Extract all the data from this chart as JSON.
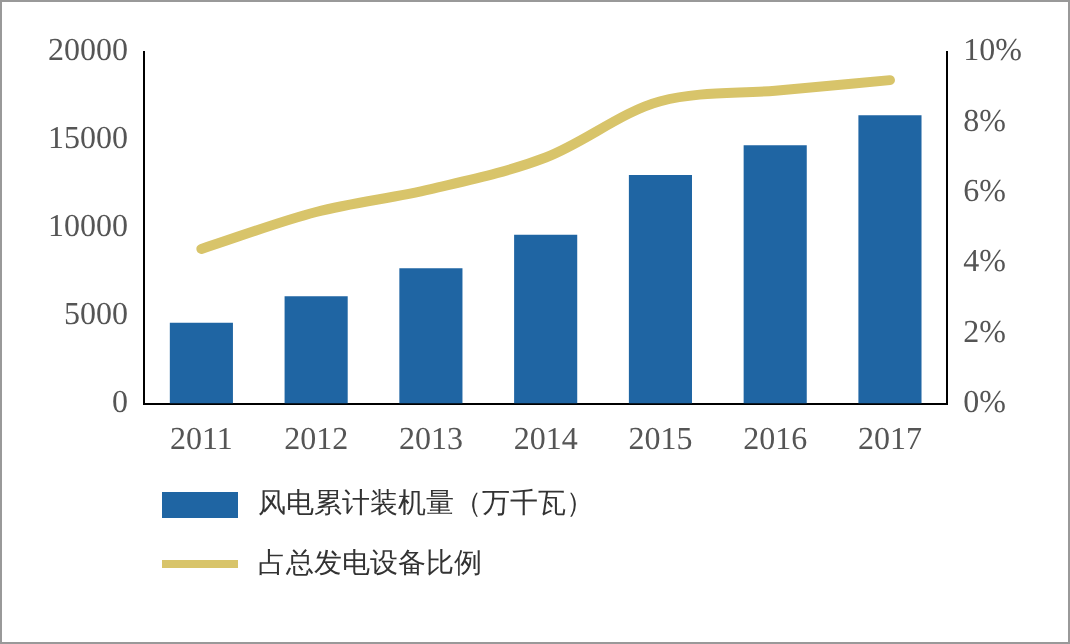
{
  "chart_data": {
    "type": "bar",
    "categories": [
      "2011",
      "2012",
      "2013",
      "2014",
      "2015",
      "2016",
      "2017"
    ],
    "series": [
      {
        "name": "风电累计装机量（万千瓦）",
        "color": "#1f65a3",
        "values": [
          4600,
          6100,
          7700,
          9600,
          13000,
          14700,
          16400
        ]
      },
      {
        "name": "占总发电设备比例",
        "type": "line",
        "axis": "y2",
        "color": "#d8c46a",
        "values": [
          4.4,
          5.45,
          6.1,
          7.0,
          8.6,
          8.9,
          9.2
        ]
      }
    ],
    "ylim": [
      0,
      20000
    ],
    "yticks": [
      0,
      5000,
      10000,
      15000,
      20000
    ],
    "y2lim": [
      0,
      10
    ],
    "y2ticks": [
      {
        "value": 0,
        "label": "0%"
      },
      {
        "value": 2,
        "label": "2%"
      },
      {
        "value": 4,
        "label": "4%"
      },
      {
        "value": 6,
        "label": "6%"
      },
      {
        "value": 8,
        "label": "8%"
      },
      {
        "value": 10,
        "label": "10%"
      }
    ],
    "grid": false,
    "legend": "bottom",
    "marker": "none"
  }
}
